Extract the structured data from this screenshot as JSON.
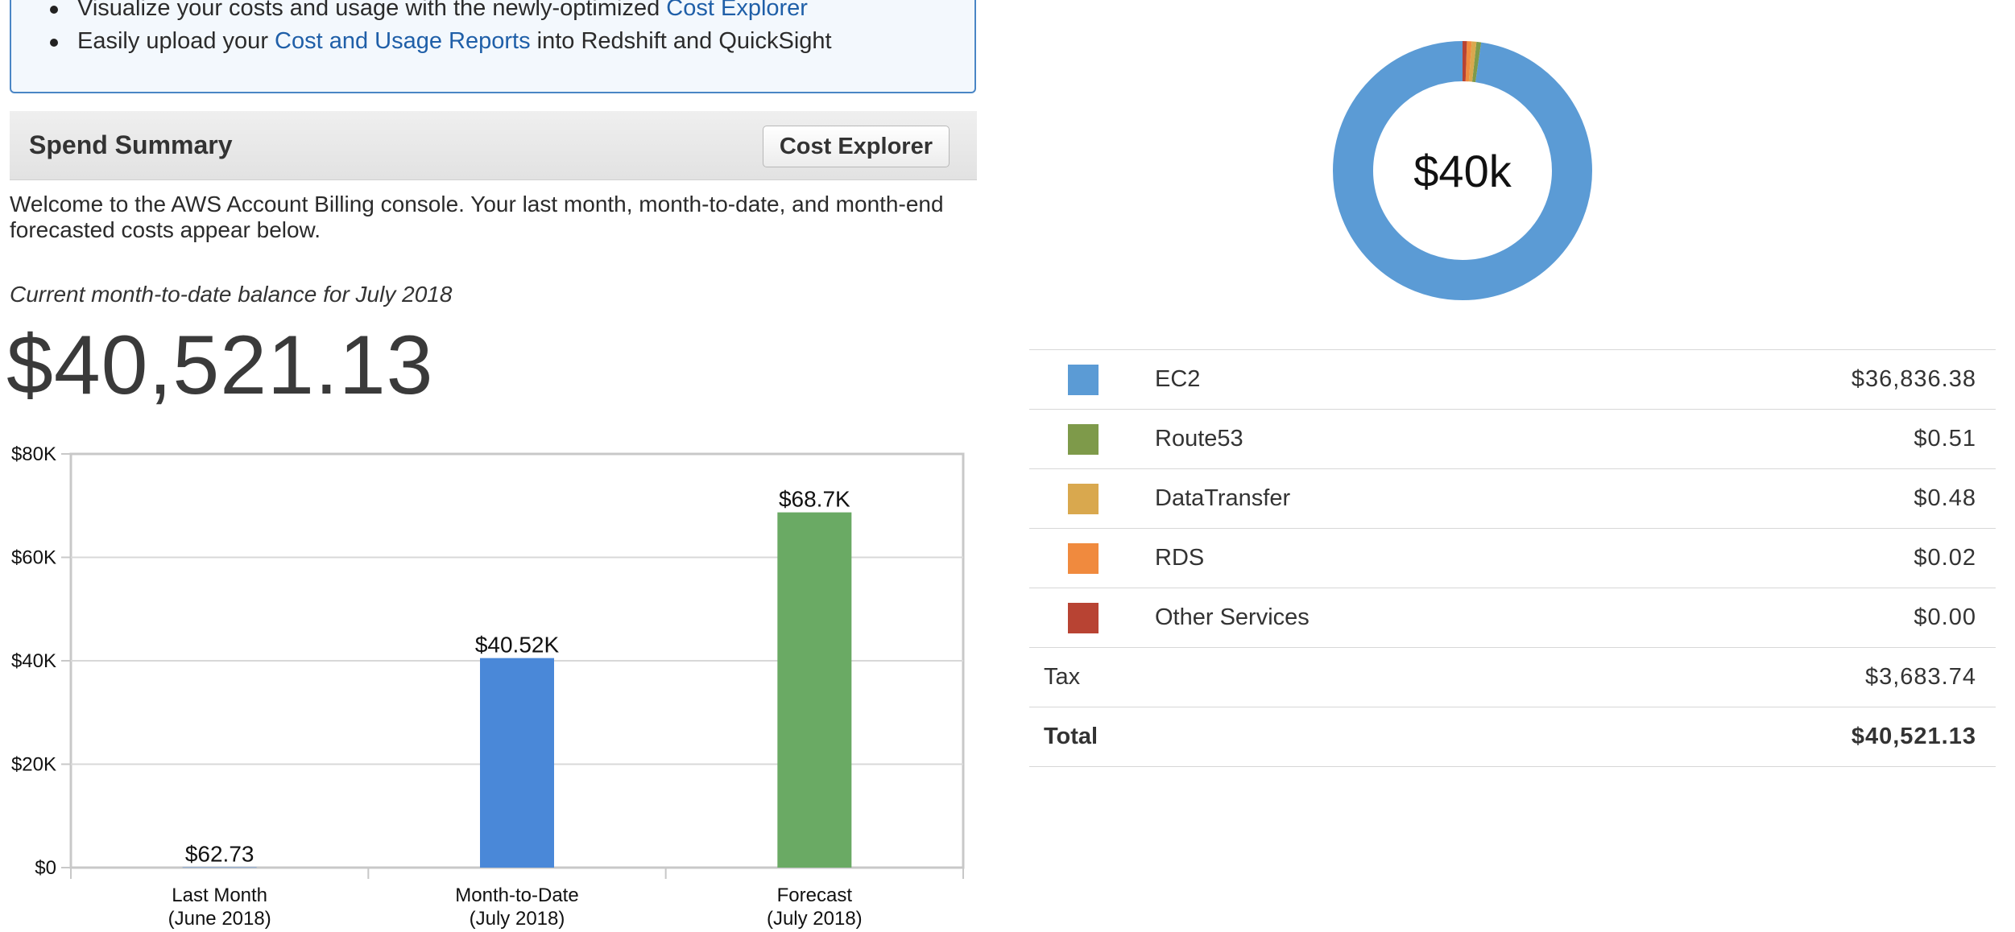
{
  "info": {
    "line1_prefix": "Visualize your costs and usage with the newly-optimized ",
    "line1_link": "Cost Explorer",
    "line2_prefix": "Easily upload your ",
    "line2_link": "Cost and Usage Reports",
    "line2_suffix": " into Redshift and QuickSight"
  },
  "summary": {
    "title": "Spend Summary",
    "cost_explorer_button": "Cost Explorer",
    "welcome": "Welcome to the AWS Account Billing console. Your last month, month-to-date, and month-end forecasted costs appear below.",
    "balance_caption": "Current month-to-date balance for July 2018",
    "balance_amount": "$40,521.13"
  },
  "chart_data": [
    {
      "type": "bar",
      "categories": [
        "Last Month\n(June 2018)",
        "Month-to-Date\n(July 2018)",
        "Forecast\n(July 2018)"
      ],
      "values": [
        62.73,
        40520,
        68700
      ],
      "data_labels": [
        "$62.73",
        "$40.52K",
        "$68.7K"
      ],
      "colors": [
        "#4a88d8",
        "#4a88d8",
        "#6aaa64"
      ],
      "ylim": [
        0,
        80000
      ],
      "yticks": [
        0,
        20000,
        40000,
        60000,
        80000
      ],
      "ytick_labels": [
        "$0",
        "$20K",
        "$40K",
        "$60K",
        "$80K"
      ],
      "grid": true
    },
    {
      "type": "pie",
      "center_label": "$40k",
      "slices": [
        {
          "name": "EC2",
          "value": 36836.38,
          "color": "#5b9bd5"
        },
        {
          "name": "Route53",
          "value": 0.51,
          "color": "#7e9a4a"
        },
        {
          "name": "DataTransfer",
          "value": 0.48,
          "color": "#d9a84e"
        },
        {
          "name": "RDS",
          "value": 0.02,
          "color": "#f08a3e"
        },
        {
          "name": "Other Services",
          "value": 0.0,
          "color": "#b84333"
        }
      ]
    }
  ],
  "breakdown": {
    "services": [
      {
        "name": "EC2",
        "amount": "$36,836.38",
        "color": "#5b9bd5"
      },
      {
        "name": "Route53",
        "amount": "$0.51",
        "color": "#7e9a4a"
      },
      {
        "name": "DataTransfer",
        "amount": "$0.48",
        "color": "#d9a84e"
      },
      {
        "name": "RDS",
        "amount": "$0.02",
        "color": "#f08a3e"
      },
      {
        "name": "Other Services",
        "amount": "$0.00",
        "color": "#b84333"
      }
    ],
    "tax_label": "Tax",
    "tax_amount": "$3,683.74",
    "total_label": "Total",
    "total_amount": "$40,521.13"
  }
}
